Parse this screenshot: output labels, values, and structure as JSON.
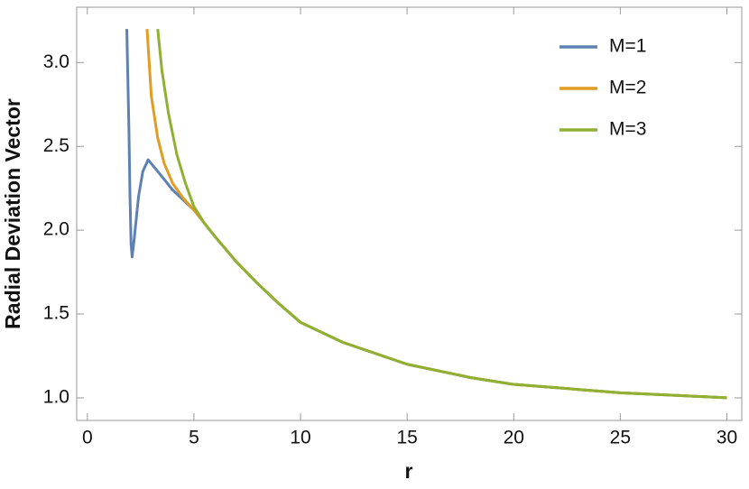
{
  "chart_data": {
    "type": "line",
    "x_label": "r",
    "y_label": "Radial Deviation Vector",
    "xlim": [
      -0.5,
      30.7
    ],
    "ylim": [
      0.865,
      3.33
    ],
    "xticks": [
      0,
      5,
      10,
      15,
      20,
      25,
      30
    ],
    "yticks": [
      {
        "value": 1,
        "label": "1.0"
      },
      1.5,
      {
        "value": 2,
        "label": "2.0"
      },
      2.5,
      {
        "value": 3,
        "label": "3.0"
      }
    ],
    "legend": "top-right",
    "series": [
      {
        "name": "M=1",
        "color": "#5e81b5",
        "x": [
          1.85,
          1.95,
          2.0,
          2.05,
          2.1,
          2.2,
          2.4,
          2.6,
          2.85,
          3.5,
          4,
          4.5,
          5,
          6,
          7,
          8,
          9,
          10,
          12,
          15,
          18,
          20,
          25,
          30
        ],
        "values": [
          3.2,
          2.6,
          2.2,
          1.92,
          1.84,
          1.95,
          2.2,
          2.35,
          2.42,
          2.32,
          2.24,
          2.18,
          2.12,
          1.96,
          1.81,
          1.68,
          1.56,
          1.45,
          1.33,
          1.2,
          1.12,
          1.08,
          1.03,
          1.0
        ]
      },
      {
        "name": "M=2",
        "color": "#e19c24",
        "x": [
          2.8,
          3.0,
          3.3,
          3.6,
          4,
          4.5,
          5,
          6,
          7,
          8,
          9,
          10,
          12,
          15,
          18,
          20,
          25,
          30
        ],
        "values": [
          3.2,
          2.8,
          2.55,
          2.4,
          2.28,
          2.19,
          2.12,
          1.96,
          1.81,
          1.68,
          1.56,
          1.45,
          1.33,
          1.2,
          1.12,
          1.08,
          1.03,
          1.0
        ]
      },
      {
        "name": "M=3",
        "color": "#8fb032",
        "x": [
          3.3,
          3.5,
          3.8,
          4.2,
          4.6,
          5,
          5.5,
          6,
          7,
          8,
          9,
          10,
          12,
          15,
          18,
          20,
          25,
          30
        ],
        "values": [
          3.2,
          2.95,
          2.7,
          2.45,
          2.28,
          2.14,
          2.04,
          1.96,
          1.81,
          1.68,
          1.56,
          1.45,
          1.33,
          1.2,
          1.12,
          1.08,
          1.03,
          1.0
        ]
      }
    ]
  }
}
